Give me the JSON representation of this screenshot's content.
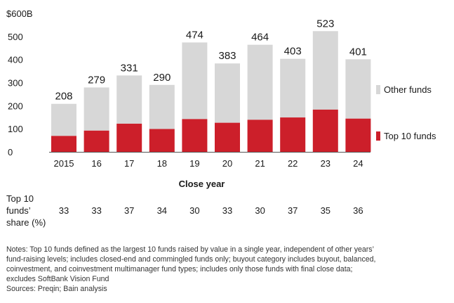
{
  "chart_data": {
    "type": "bar",
    "stacked": true,
    "categories": [
      "2015",
      "16",
      "17",
      "18",
      "19",
      "20",
      "21",
      "22",
      "23",
      "24"
    ],
    "series": [
      {
        "name": "Top 10 funds",
        "color": "#cc1f2a",
        "values": [
          69,
          92,
          122,
          99,
          142,
          126,
          139,
          149,
          183,
          144
        ]
      },
      {
        "name": "Other funds",
        "color": "#d7d7d7",
        "values": [
          139,
          187,
          209,
          191,
          332,
          257,
          325,
          254,
          340,
          257
        ]
      }
    ],
    "totals": [
      208,
      279,
      331,
      290,
      474,
      383,
      464,
      403,
      523,
      401
    ],
    "ylim": [
      0,
      600
    ],
    "yticks": [
      0,
      100,
      200,
      300,
      400,
      500
    ],
    "ytop_label": "$600B",
    "xlabel": "Close year",
    "ylabel": ""
  },
  "share_row": {
    "label_lines": [
      "Top 10",
      "funds’",
      "share (%)"
    ],
    "values": [
      "33",
      "33",
      "37",
      "34",
      "30",
      "33",
      "30",
      "37",
      "35",
      "36"
    ]
  },
  "legend": {
    "other": "Other funds",
    "top10": "Top 10 funds"
  },
  "notes": {
    "lines": [
      "Notes: Top 10 funds defined as the largest 10 funds raised by value in a single year, independent of other years’",
      "fund-raising levels; includes closed-end and commingled funds only; buyout category includes buyout, balanced,",
      "coinvestment, and coinvestment multimanager fund types; includes only those funds with final close data;",
      "excludes SoftBank Vision Fund",
      "Sources: Preqin; Bain analysis"
    ]
  }
}
